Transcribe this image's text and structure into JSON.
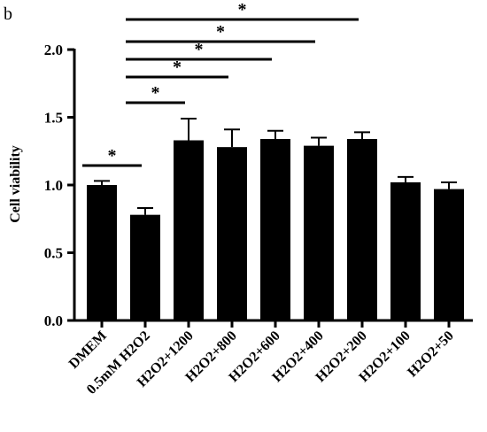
{
  "chart_data": {
    "type": "bar",
    "panel_label": "b",
    "ylabel": "Cell viability",
    "xlabel": "",
    "ylim": [
      0,
      2.0
    ],
    "yticks": [
      "0.0",
      "0.5",
      "1.0",
      "1.5",
      "2.0"
    ],
    "grid": false,
    "color": "#000000",
    "categories": [
      "DMEM",
      "0.5mM H2O2",
      "H2O2+1200",
      "H2O2+800",
      "H2O2+600",
      "H2O2+400",
      "H2O2+200",
      "H2O2+100",
      "H2O2+50"
    ],
    "values": [
      1.0,
      0.78,
      1.33,
      1.28,
      1.34,
      1.29,
      1.34,
      1.02,
      0.97
    ],
    "errors": [
      0.03,
      0.05,
      0.16,
      0.13,
      0.06,
      0.06,
      0.05,
      0.04,
      0.05
    ],
    "significance": [
      {
        "from": "DMEM",
        "to": "0.5mM H2O2",
        "label": "*"
      },
      {
        "from": "0.5mM H2O2",
        "to": "H2O2+1200",
        "label": "*"
      },
      {
        "from": "0.5mM H2O2",
        "to": "H2O2+800",
        "label": "*"
      },
      {
        "from": "0.5mM H2O2",
        "to": "H2O2+600",
        "label": "*"
      },
      {
        "from": "0.5mM H2O2",
        "to": "H2O2+400",
        "label": "*"
      },
      {
        "from": "0.5mM H2O2",
        "to": "H2O2+200",
        "label": "*"
      }
    ]
  }
}
